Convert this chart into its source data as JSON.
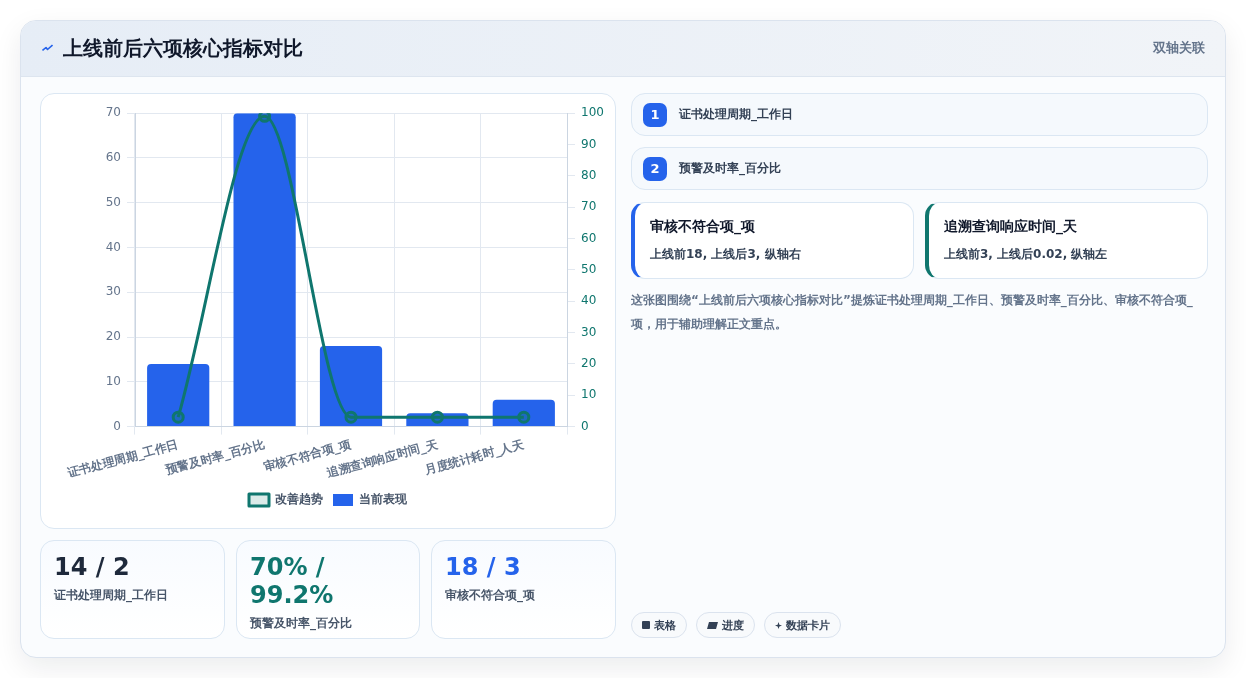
{
  "chart_data": {
    "type": "bar",
    "title": "上线前后六项核心指标对比",
    "categories": [
      "证书处理周期_工作日",
      "预警及时率_百分比",
      "审核不符合项_项",
      "追溯查询响应时间_天",
      "月度统计耗时_人天"
    ],
    "series": [
      {
        "name": "改善趋势",
        "type": "line",
        "axis": "y2",
        "color": "#0f766e",
        "values": [
          3,
          99,
          3,
          3,
          3
        ]
      },
      {
        "name": "当前表现",
        "color": "#2563eb",
        "values": [
          14,
          70,
          18,
          3,
          6
        ]
      }
    ],
    "ylim": [
      0,
      70
    ],
    "yticks": [
      0,
      10,
      20,
      30,
      40,
      50,
      60,
      70
    ],
    "y2lim": [
      0,
      100
    ],
    "y2ticks": [
      0,
      10,
      20,
      30,
      40,
      50,
      60,
      70,
      80,
      90,
      100
    ],
    "grid": true,
    "legend": "bottom",
    "marker": "circle",
    "annotations": [
      "双轴关联",
      "1",
      "证书处理周期_工作日",
      "2",
      "预警及时率_百分比",
      "审核不符合项_项",
      "上线前18, 上线后3, 纵轴右",
      "追溯查询响应时间_天",
      "上线前3, 上线后0.02, 纵轴左",
      "这张图围绕“上线前后六项核心指标对比”提炼证书处理周期_工作日、预警及时率_百分比、审核不符合项_项，用于辅助理解正文重点。",
      "14 / 2",
      "证书处理周期_工作日",
      "70% / 99.2%",
      "预警及时率_百分比",
      "18 / 3",
      "审核不符合项_项",
      "表格",
      "进度",
      "数据卡片"
    ]
  }
}
